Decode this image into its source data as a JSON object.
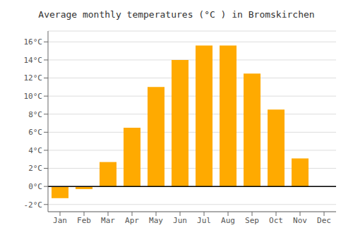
{
  "chart_data": {
    "type": "bar",
    "title": "Average monthly temperatures (°C ) in Bromskirchen",
    "categories": [
      "Jan",
      "Feb",
      "Mar",
      "Apr",
      "May",
      "Jun",
      "Jul",
      "Aug",
      "Sep",
      "Oct",
      "Nov",
      "Dec"
    ],
    "values": [
      -1.3,
      -0.3,
      2.7,
      6.5,
      11.0,
      14.0,
      15.6,
      15.6,
      12.5,
      8.5,
      3.1,
      0.0
    ],
    "color": "#FFAA00",
    "ylim": [
      -2.8,
      17.2
    ],
    "yticks": [
      {
        "value": -2,
        "label": "-2°C"
      },
      {
        "value": 0,
        "label": "0°C"
      },
      {
        "value": 2,
        "label": "2°C"
      },
      {
        "value": 4,
        "label": "4°C"
      },
      {
        "value": 6,
        "label": "6°C"
      },
      {
        "value": 8,
        "label": "8°C"
      },
      {
        "value": 10,
        "label": "10°C"
      },
      {
        "value": 12,
        "label": "12°C"
      },
      {
        "value": 14,
        "label": "14°C"
      },
      {
        "value": 16,
        "label": "16°C"
      }
    ],
    "grid": true
  }
}
